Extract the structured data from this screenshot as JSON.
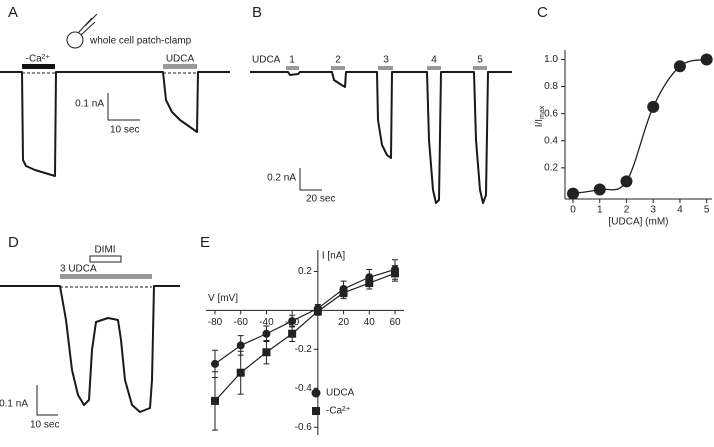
{
  "panels": {
    "A": {
      "label": "A",
      "cell_label": "whole cell patch-clamp",
      "bar_labels": [
        "-Ca²⁺",
        "UDCA"
      ],
      "scale_y": "0.1 nA",
      "scale_x": "10 sec"
    },
    "B": {
      "label": "B",
      "stimulus": "UDCA",
      "applications": [
        "1",
        "2",
        "3",
        "4",
        "5"
      ],
      "scale_y": "0.2 nA",
      "scale_x": "20 sec"
    },
    "C": {
      "label": "C"
    },
    "D": {
      "label": "D",
      "blocker": "DIMI",
      "stimulus": "3 UDCA",
      "scale_y": "0.1 nA",
      "scale_x": "10 sec"
    },
    "E": {
      "label": "E"
    }
  },
  "chart_data": [
    {
      "type": "scatter",
      "y_label": "I/I",
      "y_label_sub": "max",
      "x_label": "[UDCA] (mM)",
      "x": [
        0,
        1,
        2,
        3,
        4,
        5
      ],
      "values": [
        0.01,
        0.04,
        0.1,
        0.65,
        0.95,
        1.0
      ],
      "color": "#222222",
      "xlim": [
        -0.3,
        5.2
      ],
      "ylim": [
        -0.03,
        1.07
      ],
      "xticks": [
        0,
        1,
        2,
        3,
        4,
        5
      ],
      "yticks": [
        0.2,
        0.4,
        0.6,
        0.8,
        {
          "value": 1,
          "label": "1.0"
        }
      ]
    },
    {
      "type": "line",
      "x_label": "V [mV]",
      "y_label": "I [nA]",
      "x": [
        -80,
        -60,
        -40,
        -20,
        0,
        20,
        40,
        60
      ],
      "series": [
        {
          "name": "UDCA",
          "marker": "circle",
          "color": "#222222",
          "values": [
            -0.275,
            -0.18,
            -0.12,
            -0.055,
            0.01,
            0.11,
            0.17,
            0.21
          ],
          "errors": [
            0.07,
            0.05,
            0.04,
            0.03,
            0.02,
            0.04,
            0.04,
            0.05
          ]
        },
        {
          "name": "-Ca²⁺",
          "marker": "square",
          "color": "#222222",
          "values": [
            -0.465,
            -0.32,
            -0.215,
            -0.12,
            -0.005,
            0.09,
            0.14,
            0.19
          ],
          "errors": [
            0.15,
            0.11,
            0.06,
            0.04,
            0.02,
            0.03,
            0.03,
            0.04
          ]
        }
      ],
      "xlim": [
        -87,
        67
      ],
      "ylim": [
        -0.64,
        0.31
      ],
      "xticks": [
        -80,
        -60,
        -40,
        -20,
        20,
        40,
        60
      ],
      "yticks": [
        -0.6,
        -0.4,
        -0.2,
        0.2
      ]
    }
  ]
}
